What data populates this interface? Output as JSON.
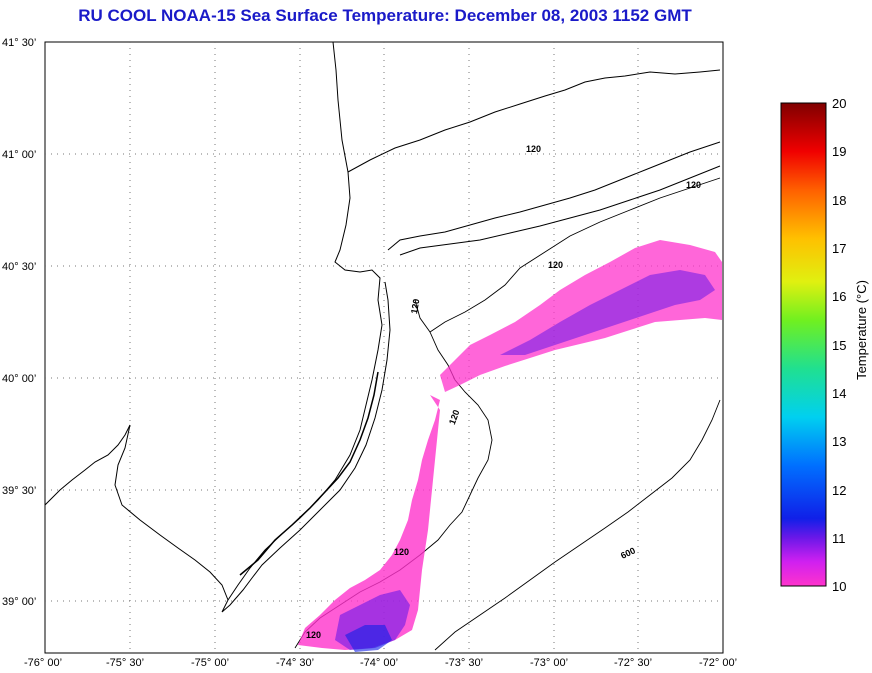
{
  "title": "RU COOL  NOAA-15  Sea Surface Temperature:  December 08, 2003 1152 GMT",
  "map": {
    "lon_ticks": [
      "-76° 00’",
      "-75° 30’",
      "-75° 00’",
      "-74° 30’",
      "-74° 00’",
      "-73° 30’",
      "-73° 00’",
      "-72° 30’",
      "-72° 00’"
    ],
    "lat_ticks": [
      "41° 30’",
      "41° 00’",
      "40° 30’",
      "40° 00’",
      "39° 30’",
      "39° 00’"
    ],
    "lon_range": [
      -76.0,
      -72.0
    ],
    "lat_range": [
      38.75,
      41.5
    ],
    "grid": "dotted",
    "isobath_labels": [
      "120",
      "120",
      "120",
      "120",
      "120",
      "120",
      "120",
      "600"
    ]
  },
  "colorbar": {
    "label": "Temperature (°C)",
    "min": 10,
    "max": 20,
    "ticks": [
      "20",
      "19",
      "18",
      "17",
      "16",
      "15",
      "14",
      "13",
      "12",
      "11",
      "10"
    ],
    "colors": [
      "#ff33cc",
      "#7a1ee0",
      "#1020e8",
      "#0080ff",
      "#00d0f0",
      "#20e0a0",
      "#60f020",
      "#e8f010",
      "#ffc000",
      "#ff6000",
      "#f00000",
      "#800000"
    ]
  }
}
